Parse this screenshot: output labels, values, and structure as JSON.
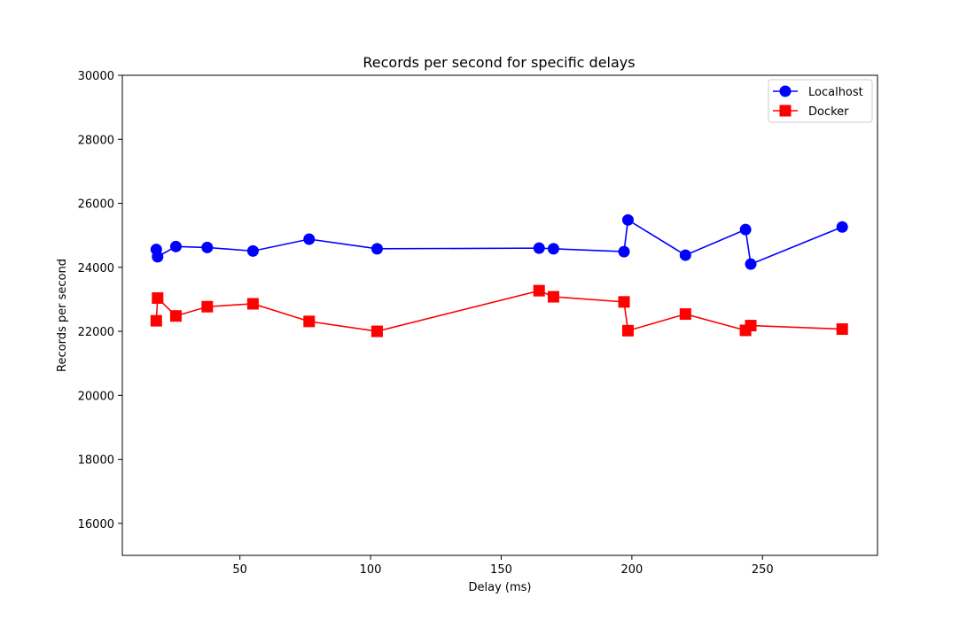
{
  "chart_data": {
    "type": "line",
    "title": "Records per second for specific delays",
    "xlabel": "Delay (ms)",
    "ylabel": "Records per second",
    "xlim": [
      5,
      294
    ],
    "ylim": [
      15000,
      30000
    ],
    "x_ticks": [
      50,
      100,
      150,
      200,
      250
    ],
    "y_ticks": [
      16000,
      18000,
      20000,
      22000,
      24000,
      26000,
      28000,
      30000
    ],
    "grid": false,
    "legend_position": "top-right",
    "series": [
      {
        "name": "Localhost",
        "color": "#0000ff",
        "marker": "circle",
        "points": [
          {
            "x": 18,
            "y": 24560
          },
          {
            "x": 18.5,
            "y": 24330
          },
          {
            "x": 25.5,
            "y": 24650
          },
          {
            "x": 37.5,
            "y": 24620
          },
          {
            "x": 55,
            "y": 24510
          },
          {
            "x": 76.5,
            "y": 24880
          },
          {
            "x": 102.5,
            "y": 24580
          },
          {
            "x": 164.5,
            "y": 24600
          },
          {
            "x": 170,
            "y": 24580
          },
          {
            "x": 197,
            "y": 24490
          },
          {
            "x": 198.5,
            "y": 25480
          },
          {
            "x": 220.5,
            "y": 24380
          },
          {
            "x": 243.5,
            "y": 25180
          },
          {
            "x": 245.5,
            "y": 24100
          },
          {
            "x": 280.5,
            "y": 25260
          }
        ]
      },
      {
        "name": "Docker",
        "color": "#ff0000",
        "marker": "square",
        "points": [
          {
            "x": 18,
            "y": 22330
          },
          {
            "x": 18.5,
            "y": 23040
          },
          {
            "x": 25.5,
            "y": 22480
          },
          {
            "x": 37.5,
            "y": 22770
          },
          {
            "x": 55,
            "y": 22860
          },
          {
            "x": 76.5,
            "y": 22310
          },
          {
            "x": 102.5,
            "y": 22000
          },
          {
            "x": 164.5,
            "y": 23270
          },
          {
            "x": 170,
            "y": 23080
          },
          {
            "x": 197,
            "y": 22920
          },
          {
            "x": 198.5,
            "y": 22020
          },
          {
            "x": 220.5,
            "y": 22540
          },
          {
            "x": 243.5,
            "y": 22030
          },
          {
            "x": 245.5,
            "y": 22180
          },
          {
            "x": 280.5,
            "y": 22070
          }
        ]
      }
    ]
  }
}
